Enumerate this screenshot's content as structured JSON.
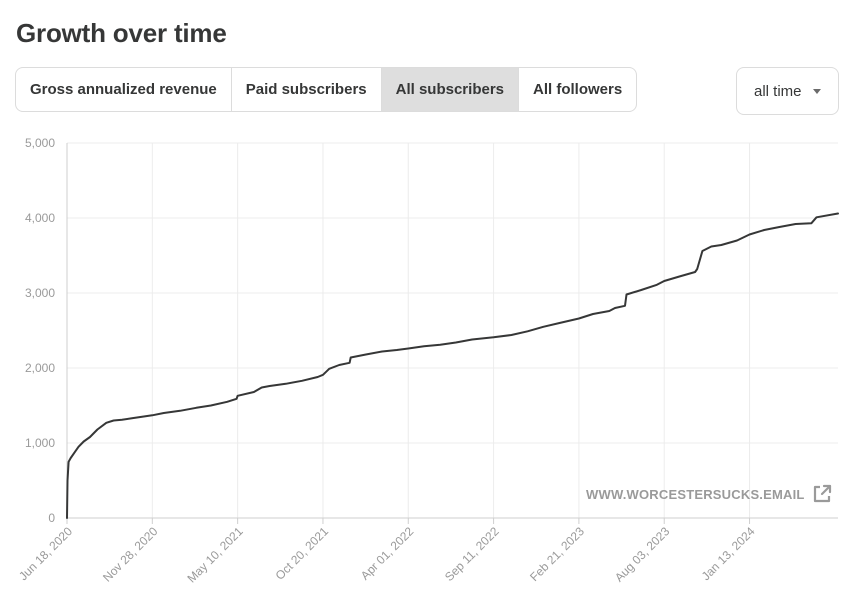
{
  "header": {
    "title": "Growth over time"
  },
  "tabs": [
    {
      "label": "Gross annualized revenue",
      "active": false
    },
    {
      "label": "Paid subscribers",
      "active": false
    },
    {
      "label": "All subscribers",
      "active": true
    },
    {
      "label": "All followers",
      "active": false
    }
  ],
  "range_select": {
    "value": "all time"
  },
  "watermark": {
    "text": "WWW.WORCESTERSUCKS.EMAIL",
    "icon": "external-link-icon"
  },
  "colors": {
    "line": "#363737",
    "grid": "#ececec",
    "tick": "#9a9a9a",
    "active_tab": "#dedede",
    "border": "#dcdcdc"
  },
  "chart_data": {
    "type": "line",
    "title": "",
    "xlabel": "",
    "ylabel": "",
    "ylim": [
      0,
      5000
    ],
    "grid": true,
    "y_ticks": [
      0,
      1000,
      2000,
      3000,
      4000,
      5000
    ],
    "y_tick_labels": [
      "0",
      "1,000",
      "2,000",
      "3,000",
      "4,000",
      "5,000"
    ],
    "x_ticks": [
      "2020-06-18",
      "2020-11-28",
      "2021-05-10",
      "2021-10-20",
      "2022-04-01",
      "2022-09-11",
      "2023-02-21",
      "2023-08-03",
      "2024-01-13"
    ],
    "x_tick_labels": [
      "Jun 18, 2020",
      "Nov 28, 2020",
      "May 10, 2021",
      "Oct 20, 2021",
      "Apr 01, 2022",
      "Sep 11, 2022",
      "Feb 21, 2023",
      "Aug 03, 2023",
      "Jan 13, 2024"
    ],
    "xlim": [
      "2020-06-18",
      "2024-06-30"
    ],
    "series": [
      {
        "x": [
          "2020-06-18",
          "2020-06-19",
          "2020-06-21",
          "2020-06-25",
          "2020-07-02",
          "2020-07-10",
          "2020-07-20",
          "2020-08-01",
          "2020-08-15",
          "2020-09-01",
          "2020-09-15",
          "2020-10-01",
          "2020-10-20",
          "2020-11-28",
          "2020-12-20",
          "2021-01-20",
          "2021-02-20",
          "2021-03-20",
          "2021-04-20",
          "2021-05-08",
          "2021-05-10",
          "2021-06-10",
          "2021-06-25",
          "2021-07-10",
          "2021-08-10",
          "2021-09-10",
          "2021-10-10",
          "2021-10-20",
          "2021-11-01",
          "2021-11-20",
          "2021-12-10",
          "2021-12-12",
          "2022-01-10",
          "2022-02-10",
          "2022-03-10",
          "2022-04-01",
          "2022-05-01",
          "2022-06-01",
          "2022-07-01",
          "2022-08-01",
          "2022-09-11",
          "2022-10-15",
          "2022-11-15",
          "2022-12-15",
          "2023-01-15",
          "2023-02-21",
          "2023-03-20",
          "2023-04-20",
          "2023-05-01",
          "2023-05-20",
          "2023-05-23",
          "2023-06-20",
          "2023-07-20",
          "2023-08-03",
          "2023-09-01",
          "2023-10-01",
          "2023-10-05",
          "2023-10-15",
          "2023-11-01",
          "2023-11-20",
          "2023-12-20",
          "2024-01-13",
          "2024-02-10",
          "2024-03-10",
          "2024-04-10",
          "2024-05-10",
          "2024-05-20",
          "2024-06-30"
        ],
        "y": [
          0,
          500,
          750,
          800,
          870,
          950,
          1020,
          1080,
          1180,
          1270,
          1300,
          1310,
          1330,
          1370,
          1400,
          1430,
          1470,
          1500,
          1550,
          1590,
          1630,
          1680,
          1740,
          1760,
          1790,
          1830,
          1880,
          1910,
          1990,
          2040,
          2070,
          2140,
          2180,
          2220,
          2240,
          2260,
          2290,
          2310,
          2340,
          2380,
          2410,
          2440,
          2490,
          2550,
          2600,
          2660,
          2720,
          2760,
          2800,
          2830,
          2980,
          3040,
          3110,
          3160,
          3220,
          3280,
          3320,
          3560,
          3620,
          3640,
          3700,
          3780,
          3840,
          3880,
          3920,
          3930,
          4010,
          4060
        ]
      }
    ]
  }
}
